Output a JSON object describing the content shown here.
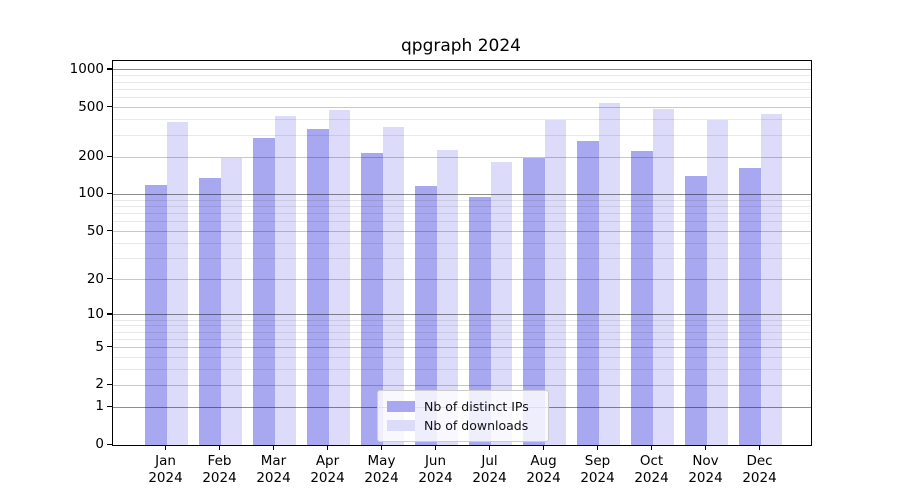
{
  "chart_data": {
    "type": "bar",
    "title": "qpgraph 2024",
    "categories": [
      "Jan",
      "Feb",
      "Mar",
      "Apr",
      "May",
      "Jun",
      "Jul",
      "Aug",
      "Sep",
      "Oct",
      "Nov",
      "Dec"
    ],
    "category_year": "2024",
    "series": [
      {
        "name": "Nb of distinct IPs",
        "color": "#a8a8f0",
        "values": [
          119,
          135,
          283,
          336,
          216,
          117,
          95,
          195,
          268,
          226,
          140,
          162
        ]
      },
      {
        "name": "Nb of downloads",
        "color": "#dcdcfa",
        "values": [
          383,
          198,
          428,
          478,
          349,
          230,
          184,
          397,
          545,
          487,
          397,
          440
        ]
      }
    ],
    "y_axis": {
      "scale": "log10(value+1)",
      "tick_values": [
        1000,
        500,
        200,
        100,
        50,
        20,
        10,
        5,
        2,
        1,
        0
      ],
      "tick_labels": [
        "1000",
        "500",
        "200",
        "100",
        "50",
        "20",
        "10",
        "5",
        "2",
        "1",
        "0"
      ],
      "minor_tick_values": [
        3,
        4,
        6,
        7,
        8,
        9,
        30,
        40,
        60,
        70,
        80,
        90,
        300,
        400,
        600,
        700,
        800,
        900
      ],
      "decade_values": [
        1,
        10,
        100,
        1000
      ],
      "ymax_displayed": 1180
    },
    "legend": {
      "position": "lower center",
      "entries": [
        "Nb of distinct IPs",
        "Nb of downloads"
      ]
    },
    "grid": true,
    "colors": {
      "decade_gridline": "#8f8f8f",
      "major_gridline": "#c9c9c9",
      "minor_gridline": "#e8e8e8",
      "spine": "#000000"
    }
  }
}
